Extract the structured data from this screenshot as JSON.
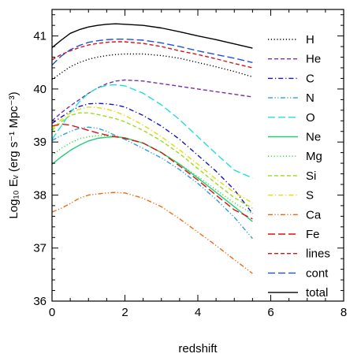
{
  "chart_data": {
    "type": "line",
    "title": "",
    "xlabel": "redshift",
    "ylabel": "Log₁₀ Eᵥ (erg s⁻¹ Mpc⁻³)",
    "xlim": [
      0,
      8
    ],
    "ylim": [
      36,
      41.5
    ],
    "xticks": [
      0,
      2,
      4,
      6,
      8
    ],
    "yticks": [
      36,
      37,
      38,
      39,
      40,
      41
    ],
    "grid": false,
    "legend_position": "right",
    "x": [
      0,
      0.25,
      0.5,
      0.75,
      1.0,
      1.25,
      1.5,
      1.75,
      2.0,
      2.5,
      3.0,
      3.5,
      4.0,
      4.5,
      5.0,
      5.5
    ],
    "series": [
      {
        "name": "H",
        "color": "#000000",
        "dash": "dot",
        "values": [
          40.18,
          40.3,
          40.42,
          40.5,
          40.56,
          40.6,
          40.63,
          40.65,
          40.66,
          40.66,
          40.63,
          40.58,
          40.5,
          40.42,
          40.33,
          40.23
        ]
      },
      {
        "name": "He",
        "color": "#7b2fa8",
        "dash": "dash",
        "values": [
          39.4,
          39.55,
          39.68,
          39.8,
          39.92,
          40.02,
          40.1,
          40.15,
          40.17,
          40.15,
          40.1,
          40.05,
          40.0,
          39.95,
          39.9,
          39.85
        ]
      },
      {
        "name": "C",
        "color": "#1515c0",
        "dash": "dashdot",
        "values": [
          39.35,
          39.47,
          39.58,
          39.67,
          39.72,
          39.73,
          39.72,
          39.7,
          39.66,
          39.5,
          39.3,
          39.05,
          38.75,
          38.45,
          38.1,
          37.65
        ]
      },
      {
        "name": "N",
        "color": "#2a9de8",
        "dash": "dashdotdot",
        "values": [
          39.03,
          39.12,
          39.2,
          39.26,
          39.28,
          39.26,
          39.2,
          39.12,
          39.05,
          38.88,
          38.7,
          38.48,
          38.22,
          37.92,
          37.58,
          37.18
        ]
      },
      {
        "name": "O",
        "color": "#22dede",
        "dash": "longdash",
        "values": [
          39.05,
          39.3,
          39.55,
          39.76,
          39.92,
          40.02,
          40.07,
          40.08,
          40.06,
          39.92,
          39.7,
          39.42,
          39.1,
          38.78,
          38.47,
          38.32
        ]
      },
      {
        "name": "Ne",
        "color": "#22cc77",
        "dash": "solid",
        "values": [
          38.58,
          38.72,
          38.84,
          38.94,
          39.02,
          39.07,
          39.09,
          39.1,
          39.08,
          38.98,
          38.8,
          38.58,
          38.32,
          38.05,
          37.78,
          37.5
        ]
      },
      {
        "name": "Mg",
        "color": "#33dd33",
        "dash": "dot",
        "values": [
          38.75,
          38.88,
          38.98,
          39.06,
          39.1,
          39.12,
          39.12,
          39.1,
          39.08,
          38.98,
          38.8,
          38.58,
          38.35,
          38.1,
          37.85,
          37.65
        ]
      },
      {
        "name": "Si",
        "color": "#99dd22",
        "dash": "dash",
        "values": [
          39.22,
          39.38,
          39.5,
          39.55,
          39.55,
          39.52,
          39.48,
          39.44,
          39.38,
          39.22,
          39.02,
          38.78,
          38.5,
          38.22,
          37.95,
          37.75
        ]
      },
      {
        "name": "S",
        "color": "#dddd11",
        "dash": "dashdot",
        "values": [
          39.25,
          39.42,
          39.55,
          39.62,
          39.66,
          39.65,
          39.62,
          39.57,
          39.5,
          39.32,
          39.1,
          38.85,
          38.58,
          38.3,
          38.05,
          37.85
        ]
      },
      {
        "name": "Ca",
        "color": "#ee6a10",
        "dash": "dashdotdot",
        "values": [
          37.68,
          37.75,
          37.84,
          37.94,
          38.0,
          38.02,
          38.04,
          38.05,
          38.04,
          37.94,
          37.78,
          37.55,
          37.3,
          37.05,
          36.78,
          36.52
        ]
      },
      {
        "name": "Fe",
        "color": "#dd1111",
        "dash": "longdash",
        "values": [
          39.3,
          39.34,
          39.32,
          39.27,
          39.22,
          39.17,
          39.13,
          39.1,
          39.07,
          38.98,
          38.8,
          38.55,
          38.28,
          38.0,
          37.72,
          37.55
        ]
      },
      {
        "name": "lines",
        "color": "#dd1111",
        "dash": "dash",
        "values": [
          40.55,
          40.65,
          40.72,
          40.78,
          40.83,
          40.86,
          40.88,
          40.89,
          40.89,
          40.86,
          40.8,
          40.72,
          40.65,
          40.57,
          40.48,
          40.4
        ]
      },
      {
        "name": "cont",
        "color": "#1f4fe0",
        "dash": "longdash",
        "values": [
          40.45,
          40.62,
          40.74,
          40.82,
          40.88,
          40.91,
          40.93,
          40.94,
          40.94,
          40.92,
          40.87,
          40.8,
          40.72,
          40.65,
          40.58,
          40.5
        ]
      },
      {
        "name": "total",
        "color": "#000000",
        "dash": "solid",
        "values": [
          40.78,
          40.92,
          41.05,
          41.12,
          41.17,
          41.2,
          41.22,
          41.23,
          41.22,
          41.2,
          41.15,
          41.08,
          41.0,
          40.93,
          40.85,
          40.77
        ]
      }
    ]
  }
}
